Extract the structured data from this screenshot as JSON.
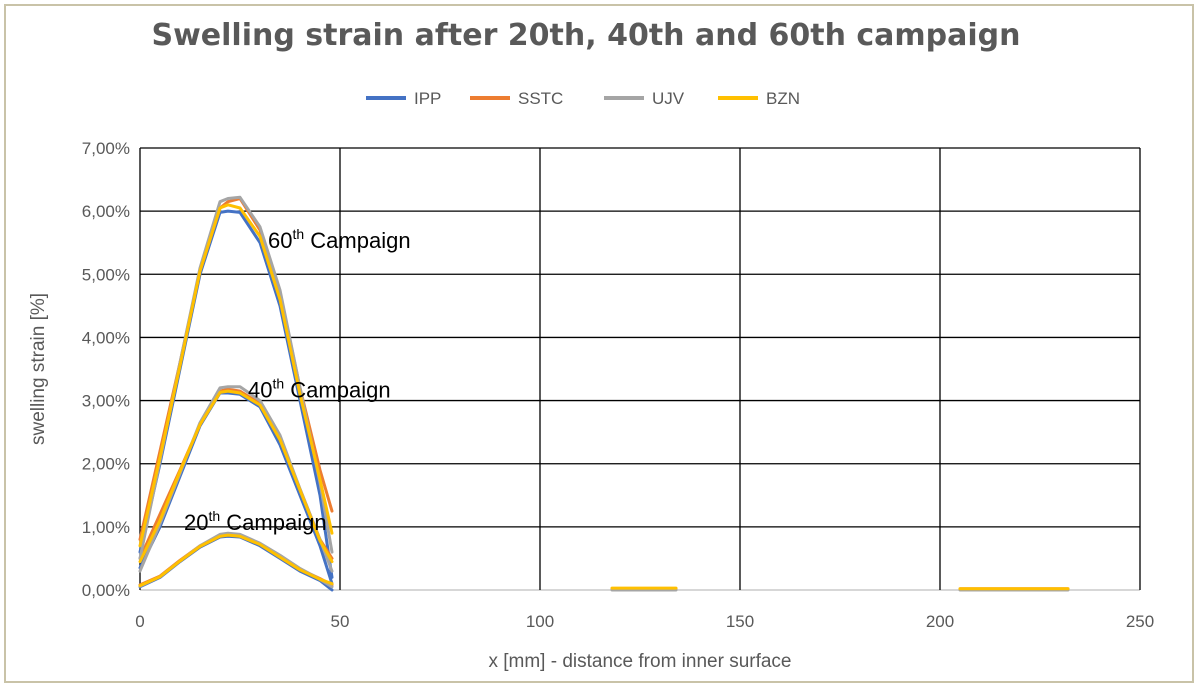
{
  "chart_data": {
    "type": "line",
    "title": "Swelling strain after 20th, 40th and 60th campaign",
    "xlabel": "x [mm] - distance from inner surface",
    "ylabel": "swelling strain [%]",
    "xlim": [
      0,
      250
    ],
    "ylim": [
      0,
      7
    ],
    "x_ticks": [
      "0",
      "50",
      "100",
      "150",
      "200",
      "250"
    ],
    "y_ticks": [
      "0,00%",
      "1,00%",
      "2,00%",
      "3,00%",
      "4,00%",
      "5,00%",
      "6,00%",
      "7,00%"
    ],
    "grid": true,
    "legend_position": "top",
    "colors": {
      "IPP": "#4472c4",
      "SSTC": "#ed7d31",
      "UJV": "#a5a5a5",
      "BZN": "#ffc000"
    },
    "annotations": [
      {
        "base": "60",
        "sup": "th",
        "text": " Campaign",
        "x": 32,
        "y": 5.42
      },
      {
        "base": "40",
        "sup": "th",
        "text": " Campaign",
        "x": 27,
        "y": 3.05
      },
      {
        "base": "20",
        "sup": "th",
        "text": " Campaign",
        "x": 11,
        "y": 0.95
      }
    ],
    "series": [
      {
        "name": "IPP",
        "segments": [
          {
            "x": [
              0,
              5,
              10,
              15,
              20,
              22,
              25,
              30,
              35,
              40,
              45,
              48
            ],
            "y": [
              0.05,
              0.2,
              0.45,
              0.68,
              0.84,
              0.85,
              0.84,
              0.7,
              0.5,
              0.3,
              0.15,
              0.0
            ]
          },
          {
            "x": [
              0,
              5,
              10,
              15,
              20,
              22,
              25,
              30,
              35,
              40,
              45,
              48
            ],
            "y": [
              0.35,
              1.0,
              1.8,
              2.6,
              3.12,
              3.12,
              3.1,
              2.9,
              2.3,
              1.5,
              0.7,
              0.1
            ]
          },
          {
            "x": [
              0,
              5,
              10,
              15,
              20,
              22,
              25,
              30,
              35,
              40,
              45,
              48
            ],
            "y": [
              0.6,
              2.0,
              3.5,
              5.0,
              5.98,
              6.0,
              5.98,
              5.5,
              4.5,
              3.0,
              1.5,
              0.2
            ]
          }
        ]
      },
      {
        "name": "SSTC",
        "segments": [
          {
            "x": [
              0,
              5,
              10,
              15,
              20,
              22,
              25,
              30,
              35,
              40,
              45,
              48
            ],
            "y": [
              0.08,
              0.22,
              0.47,
              0.7,
              0.86,
              0.88,
              0.86,
              0.73,
              0.53,
              0.33,
              0.18,
              0.08
            ]
          },
          {
            "x": [
              0,
              5,
              10,
              15,
              20,
              22,
              25,
              30,
              35,
              40,
              45,
              48
            ],
            "y": [
              0.5,
              1.2,
              1.9,
              2.62,
              3.15,
              3.18,
              3.15,
              2.95,
              2.4,
              1.6,
              0.8,
              0.5
            ]
          },
          {
            "x": [
              0,
              5,
              10,
              15,
              20,
              22,
              25,
              30,
              35,
              40,
              45,
              48
            ],
            "y": [
              0.8,
              2.2,
              3.6,
              5.05,
              6.05,
              6.15,
              6.2,
              5.7,
              4.7,
              3.2,
              1.9,
              1.25
            ]
          },
          {
            "x": [
              118,
              134
            ],
            "y": [
              0.02,
              0.02
            ]
          },
          {
            "x": [
              205,
              232
            ],
            "y": [
              0.02,
              0.02
            ]
          }
        ]
      },
      {
        "name": "UJV",
        "segments": [
          {
            "x": [
              0,
              5,
              10,
              15,
              20,
              22,
              25,
              30,
              35,
              40,
              45,
              48
            ],
            "y": [
              0.06,
              0.21,
              0.46,
              0.7,
              0.88,
              0.9,
              0.88,
              0.74,
              0.55,
              0.34,
              0.17,
              0.05
            ]
          },
          {
            "x": [
              0,
              5,
              10,
              15,
              20,
              22,
              25,
              30,
              35,
              40,
              45,
              48
            ],
            "y": [
              0.3,
              1.05,
              1.85,
              2.65,
              3.2,
              3.22,
              3.22,
              3.0,
              2.45,
              1.6,
              0.8,
              0.3
            ]
          },
          {
            "x": [
              0,
              5,
              10,
              15,
              20,
              22,
              25,
              30,
              35,
              40,
              45,
              48
            ],
            "y": [
              0.5,
              2.05,
              3.6,
              5.1,
              6.15,
              6.2,
              6.22,
              5.75,
              4.75,
              3.2,
              1.7,
              0.6
            ]
          },
          {
            "x": [
              118,
              134
            ],
            "y": [
              0.0,
              0.0
            ]
          },
          {
            "x": [
              205,
              232
            ],
            "y": [
              0.0,
              0.0
            ]
          }
        ]
      },
      {
        "name": "BZN",
        "segments": [
          {
            "x": [
              0,
              5,
              10,
              15,
              20,
              22,
              25,
              30,
              35,
              40,
              45,
              48
            ],
            "y": [
              0.07,
              0.21,
              0.46,
              0.69,
              0.85,
              0.87,
              0.85,
              0.72,
              0.52,
              0.32,
              0.17,
              0.1
            ]
          },
          {
            "x": [
              0,
              5,
              10,
              15,
              20,
              22,
              25,
              30,
              35,
              40,
              45,
              48
            ],
            "y": [
              0.45,
              1.1,
              1.88,
              2.62,
              3.13,
              3.15,
              3.12,
              2.93,
              2.38,
              1.58,
              0.78,
              0.45
            ]
          },
          {
            "x": [
              0,
              5,
              10,
              15,
              20,
              22,
              25,
              30,
              35,
              40,
              45,
              48
            ],
            "y": [
              0.7,
              2.1,
              3.55,
              5.05,
              6.05,
              6.1,
              6.05,
              5.6,
              4.6,
              3.1,
              1.75,
              0.9
            ]
          },
          {
            "x": [
              118,
              134
            ],
            "y": [
              0.03,
              0.03
            ]
          },
          {
            "x": [
              205,
              232
            ],
            "y": [
              0.02,
              0.02
            ]
          }
        ]
      }
    ]
  }
}
